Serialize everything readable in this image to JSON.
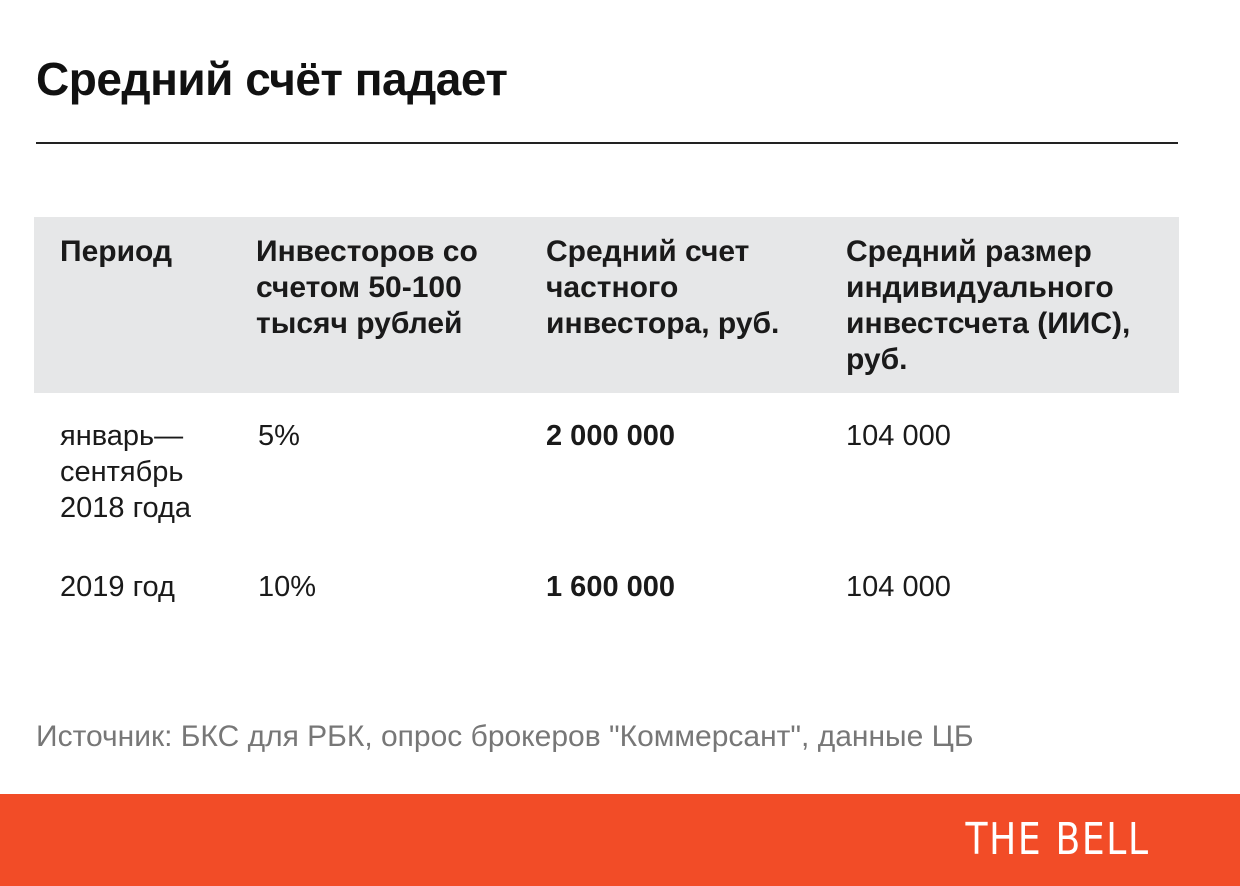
{
  "chart_data": {
    "type": "table",
    "title": "Средний счёт падает",
    "columns": [
      "Период",
      "Инвесторов со счетом 50-100 тысяч рублей",
      "Средний счет частного инвестора, руб.",
      "Средний размер индивидуального инвестсчета (ИИС), руб."
    ],
    "rows": [
      [
        "январь—сентябрь 2018 года",
        "5%",
        "2 000 000",
        "104 000"
      ],
      [
        "2019 год",
        "10%",
        "1 600 000",
        "104 000"
      ]
    ],
    "source": "Источник:  БКС для РБК, опрос брокеров \"Коммерсант\", данные ЦБ"
  },
  "brand": "THE BELL",
  "colors": {
    "header_bg": "#e6e7e8",
    "footer_bg": "#f24c27",
    "text": "#1a1a1a",
    "source_text": "#777777"
  }
}
